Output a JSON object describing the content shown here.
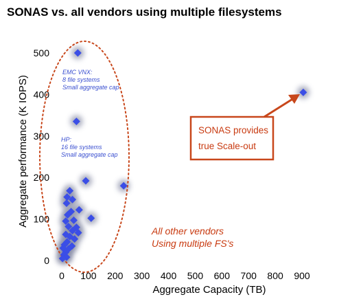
{
  "colors": {
    "marker": "#3b4ee6",
    "marker_glow": "#8a8fa8",
    "accent": "#c8471b",
    "ellipse": "#c8471b",
    "annotation_blue": "#3a4fd0"
  },
  "chart_data": {
    "type": "scatter",
    "title": "SONAS vs. all vendors using multiple filesystems",
    "xlabel": "Aggregate Capacity (TB)",
    "ylabel": "Aggregate performance (K IOPS)",
    "xlim": [
      0,
      900
    ],
    "ylim": [
      0,
      500
    ],
    "xticks": [
      "0",
      "100",
      "200",
      "300",
      "400",
      "500",
      "600",
      "700",
      "800",
      "900"
    ],
    "yticks": [
      "0",
      "100",
      "200",
      "300",
      "400",
      "500"
    ],
    "grid": false,
    "legend": "none",
    "points": [
      {
        "x": 60,
        "y": 500
      },
      {
        "x": 55,
        "y": 335
      },
      {
        "x": 905,
        "y": 405
      },
      {
        "x": 90,
        "y": 192
      },
      {
        "x": 232,
        "y": 180
      },
      {
        "x": 30,
        "y": 168
      },
      {
        "x": 20,
        "y": 153
      },
      {
        "x": 40,
        "y": 147
      },
      {
        "x": 18,
        "y": 138
      },
      {
        "x": 65,
        "y": 122
      },
      {
        "x": 35,
        "y": 118
      },
      {
        "x": 22,
        "y": 110
      },
      {
        "x": 110,
        "y": 102
      },
      {
        "x": 45,
        "y": 97
      },
      {
        "x": 15,
        "y": 95
      },
      {
        "x": 25,
        "y": 82
      },
      {
        "x": 55,
        "y": 80
      },
      {
        "x": 40,
        "y": 72
      },
      {
        "x": 62,
        "y": 67
      },
      {
        "x": 15,
        "y": 63
      },
      {
        "x": 30,
        "y": 58
      },
      {
        "x": 48,
        "y": 52
      },
      {
        "x": 20,
        "y": 45
      },
      {
        "x": 10,
        "y": 38
      },
      {
        "x": 38,
        "y": 35
      },
      {
        "x": 5,
        "y": 30
      },
      {
        "x": 25,
        "y": 28
      },
      {
        "x": 15,
        "y": 20
      },
      {
        "x": 8,
        "y": 14
      },
      {
        "x": 18,
        "y": 8
      },
      {
        "x": 3,
        "y": 5
      }
    ],
    "annotations": {
      "emc": [
        "EMC VNX:",
        "8 file systems",
        "Small aggregate cap"
      ],
      "hp": [
        "HP:",
        "16 file systems",
        "Small aggregate cap"
      ],
      "others": [
        "All other vendors",
        "Using multiple FS's"
      ],
      "sonas_box": [
        "SONAS provides",
        "true Scale-out"
      ]
    }
  }
}
